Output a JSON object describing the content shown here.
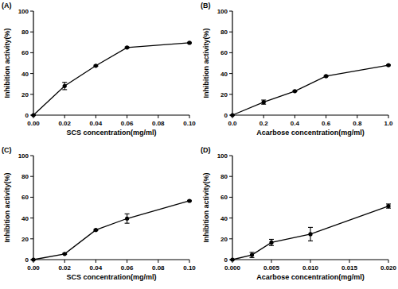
{
  "chart_data": [
    {
      "type": "line",
      "title": "(A)",
      "x_label": "SCS concentration(mg/ml)",
      "y_label": "Inhibition activity(%)",
      "x": [
        0,
        0.02,
        0.04,
        0.06,
        0.1
      ],
      "values": [
        0,
        28,
        47.5,
        65,
        69.5
      ],
      "errors": [
        0,
        3.5,
        0.5,
        0.5,
        0.5
      ],
      "color": "#000000",
      "marker": "circle",
      "xlim": [
        0,
        0.1
      ],
      "xticks": [
        {
          "value": 0,
          "label": "0.00"
        },
        0.02,
        0.04,
        0.06,
        0.08,
        {
          "value": 0.1,
          "label": "0.10"
        }
      ],
      "ylim": [
        0,
        100
      ],
      "yticks": [
        0,
        20,
        40,
        60,
        80,
        100
      ]
    },
    {
      "type": "line",
      "title": "(B)",
      "x_label": "Acarbose concentration(mg/ml)",
      "y_label": "Inhibition activity(%)",
      "x": [
        0,
        0.2,
        0.4,
        0.6,
        1
      ],
      "values": [
        0,
        12.5,
        23,
        37.5,
        48
      ],
      "errors": [
        0,
        2,
        0.5,
        0.5,
        0.5
      ],
      "color": "#000000",
      "marker": "circle",
      "xlim": [
        0,
        1
      ],
      "xticks": [
        {
          "value": 0,
          "label": "0.0"
        },
        0.2,
        0.4,
        0.6,
        0.8,
        {
          "value": 1,
          "label": "1.0"
        }
      ],
      "ylim": [
        0,
        100
      ],
      "yticks": [
        0,
        20,
        40,
        60,
        80,
        100
      ]
    },
    {
      "type": "line",
      "title": "(C)",
      "x_label": "SCS concentration(mg/ml)",
      "y_label": "Inhibition activity(%)",
      "x": [
        0,
        0.02,
        0.04,
        0.06,
        0.1
      ],
      "values": [
        0,
        5.5,
        28.5,
        39.5,
        56.5
      ],
      "errors": [
        0,
        0.5,
        0.5,
        4.5,
        0.5
      ],
      "color": "#000000",
      "marker": "circle",
      "xlim": [
        0,
        0.1
      ],
      "xticks": [
        {
          "value": 0,
          "label": "0.00"
        },
        0.02,
        0.04,
        0.06,
        0.08,
        {
          "value": 0.1,
          "label": "0.10"
        }
      ],
      "ylim": [
        0,
        100
      ],
      "yticks": [
        0,
        20,
        40,
        60,
        80,
        100
      ]
    },
    {
      "type": "line",
      "title": "(D)",
      "x_label": "Acarbose concentration(mg/ml)",
      "y_label": "Inhibition activity(%)",
      "x": [
        0,
        0.0025,
        0.005,
        0.01,
        0.02
      ],
      "values": [
        0,
        4.5,
        16.5,
        24.5,
        51.5
      ],
      "errors": [
        0,
        2.5,
        3,
        6.5,
        2
      ],
      "color": "#000000",
      "marker": "circle",
      "xlim": [
        0,
        0.02
      ],
      "xticks": [
        {
          "value": 0,
          "label": "0.000"
        },
        0.005,
        {
          "value": 0.01,
          "label": "0.010"
        },
        0.015,
        {
          "value": 0.02,
          "label": "0.020"
        }
      ],
      "ylim": [
        0,
        100
      ],
      "yticks": [
        0,
        20,
        40,
        60,
        80,
        100
      ]
    }
  ]
}
